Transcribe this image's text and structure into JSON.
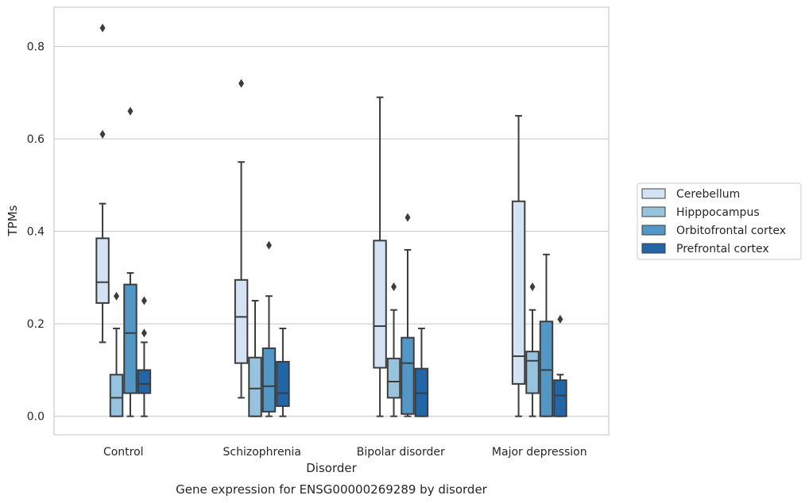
{
  "chart_data": {
    "type": "box",
    "title": "",
    "caption": "Gene expression for ENSG00000269289 by disorder",
    "xlabel": "Disorder",
    "ylabel": "TPMs",
    "ylim": [
      -0.04,
      0.885
    ],
    "yticks": [
      0.0,
      0.2,
      0.4,
      0.6,
      0.8
    ],
    "ytick_labels": [
      "0.0",
      "0.2",
      "0.4",
      "0.6",
      "0.8"
    ],
    "grid": "horizontal",
    "legend_position": "right",
    "categories": [
      "Control",
      "Schizophrenia",
      "Bipolar disorder",
      "Major depression"
    ],
    "series": [
      {
        "name": "Cerebellum",
        "color": "#d3e3f3",
        "boxes": [
          {
            "whisker_low": 0.16,
            "q1": 0.245,
            "median": 0.29,
            "q3": 0.385,
            "whisker_high": 0.46,
            "outliers": [
              0.61,
              0.84
            ]
          },
          {
            "whisker_low": 0.04,
            "q1": 0.115,
            "median": 0.215,
            "q3": 0.295,
            "whisker_high": 0.55,
            "outliers": [
              0.72
            ]
          },
          {
            "whisker_low": 0.0,
            "q1": 0.105,
            "median": 0.195,
            "q3": 0.38,
            "whisker_high": 0.69,
            "outliers": []
          },
          {
            "whisker_low": 0.0,
            "q1": 0.07,
            "median": 0.13,
            "q3": 0.465,
            "whisker_high": 0.65,
            "outliers": []
          }
        ]
      },
      {
        "name": "Hipppocampus",
        "color": "#98c3de",
        "boxes": [
          {
            "whisker_low": 0.0,
            "q1": 0.0,
            "median": 0.04,
            "q3": 0.09,
            "whisker_high": 0.19,
            "outliers": [
              0.26
            ]
          },
          {
            "whisker_low": 0.0,
            "q1": 0.0,
            "median": 0.06,
            "q3": 0.127,
            "whisker_high": 0.25,
            "outliers": []
          },
          {
            "whisker_low": 0.0,
            "q1": 0.04,
            "median": 0.075,
            "q3": 0.125,
            "whisker_high": 0.23,
            "outliers": [
              0.28
            ]
          },
          {
            "whisker_low": 0.0,
            "q1": 0.05,
            "median": 0.12,
            "q3": 0.14,
            "whisker_high": 0.23,
            "outliers": [
              0.28
            ]
          }
        ]
      },
      {
        "name": "Orbitofrontal cortex",
        "color": "#5397c7",
        "boxes": [
          {
            "whisker_low": 0.0,
            "q1": 0.05,
            "median": 0.18,
            "q3": 0.285,
            "whisker_high": 0.31,
            "outliers": [
              0.66
            ]
          },
          {
            "whisker_low": 0.0,
            "q1": 0.01,
            "median": 0.065,
            "q3": 0.147,
            "whisker_high": 0.26,
            "outliers": [
              0.37
            ]
          },
          {
            "whisker_low": 0.0,
            "q1": 0.005,
            "median": 0.115,
            "q3": 0.17,
            "whisker_high": 0.36,
            "outliers": [
              0.43
            ]
          },
          {
            "whisker_low": 0.0,
            "q1": 0.0,
            "median": 0.1,
            "q3": 0.205,
            "whisker_high": 0.35,
            "outliers": []
          }
        ]
      },
      {
        "name": "Prefrontal cortex",
        "color": "#2366a8",
        "boxes": [
          {
            "whisker_low": 0.0,
            "q1": 0.05,
            "median": 0.07,
            "q3": 0.1,
            "whisker_high": 0.16,
            "outliers": [
              0.18,
              0.25
            ]
          },
          {
            "whisker_low": 0.0,
            "q1": 0.022,
            "median": 0.05,
            "q3": 0.118,
            "whisker_high": 0.19,
            "outliers": []
          },
          {
            "whisker_low": 0.0,
            "q1": 0.0,
            "median": 0.05,
            "q3": 0.103,
            "whisker_high": 0.19,
            "outliers": []
          },
          {
            "whisker_low": 0.0,
            "q1": 0.0,
            "median": 0.045,
            "q3": 0.078,
            "whisker_high": 0.09,
            "outliers": [
              0.21
            ]
          }
        ]
      }
    ]
  }
}
